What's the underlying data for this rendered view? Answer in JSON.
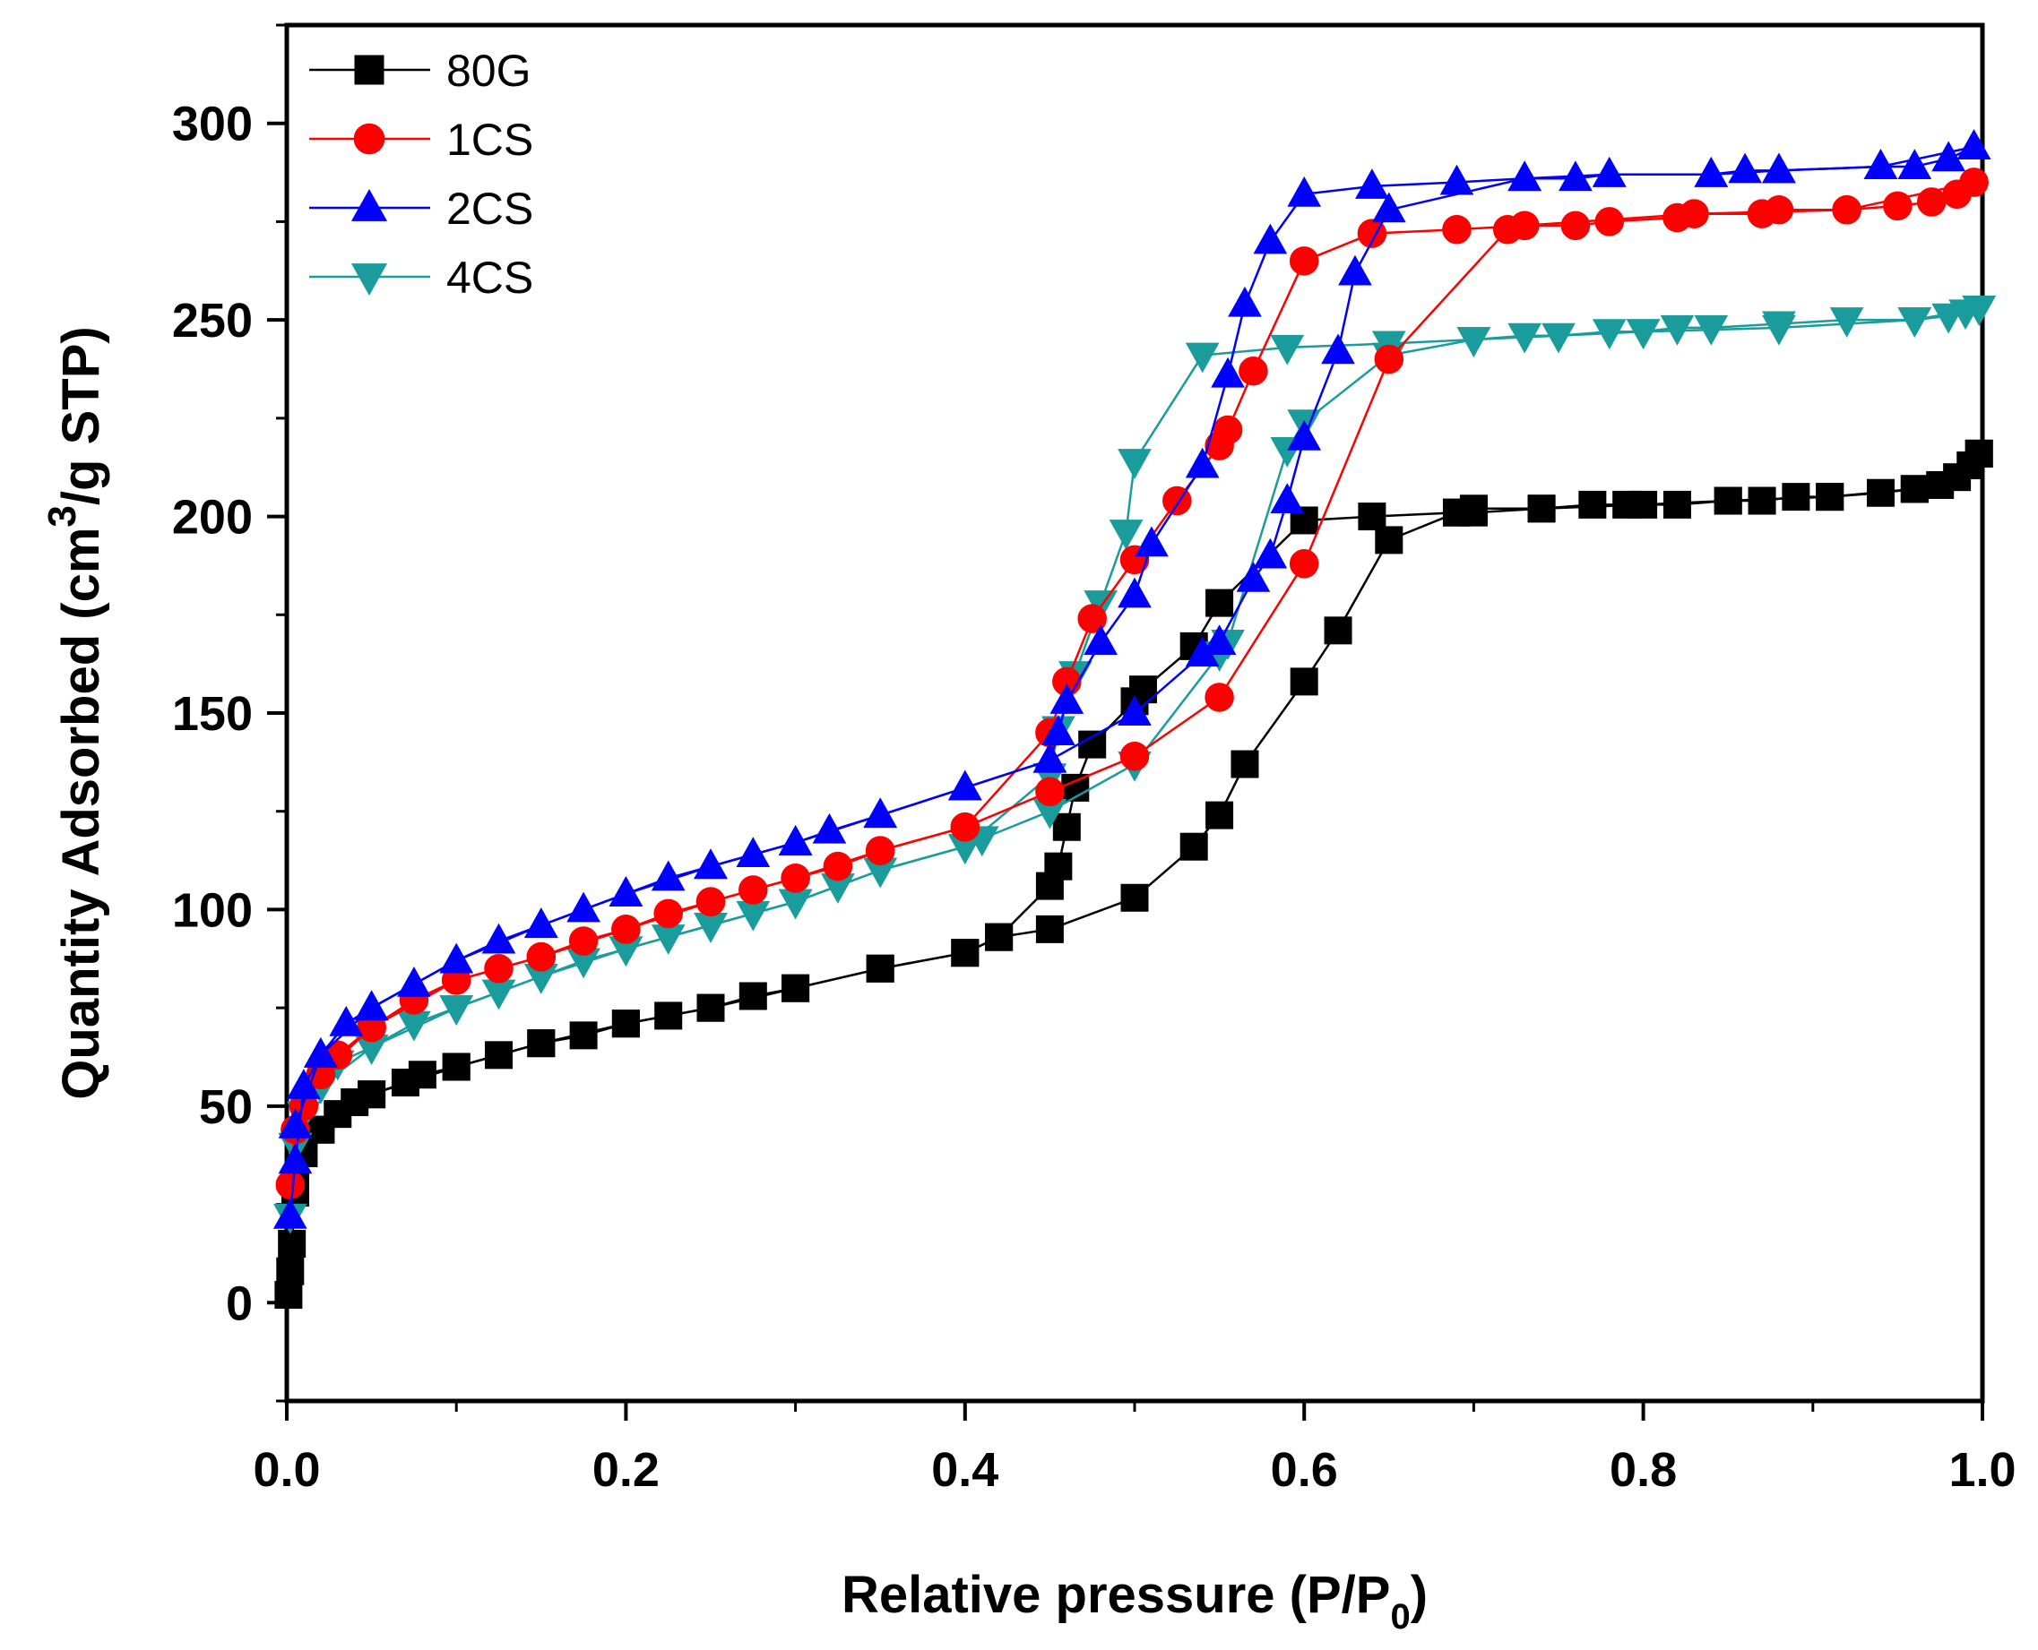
{
  "chart_data": {
    "type": "line",
    "title": "",
    "xlabel": {
      "main": "Relative pressure (P/P",
      "sub": "0",
      "tail": ")"
    },
    "ylabel": {
      "main": "Quantity Adsorbed (cm",
      "sup": "3",
      "tail": "/g STP)"
    },
    "xlim": [
      0.0,
      1.0
    ],
    "ylim": [
      -25,
      325
    ],
    "xticks": [
      "0.0",
      "0.2",
      "0.4",
      "0.6",
      "0.8",
      "1.0"
    ],
    "xtick_values": [
      0.0,
      0.2,
      0.4,
      0.6,
      0.8,
      1.0
    ],
    "yticks": [
      "0",
      "50",
      "100",
      "150",
      "200",
      "250",
      "300"
    ],
    "ytick_values": [
      0,
      50,
      100,
      150,
      200,
      250,
      300
    ],
    "legend_position": "top-left",
    "series": [
      {
        "name": "80G",
        "color": "#000000",
        "marker": "square",
        "adsorption": {
          "x": [
            0.001,
            0.002,
            0.003,
            0.005,
            0.01,
            0.02,
            0.03,
            0.04,
            0.05,
            0.07,
            0.08,
            0.1,
            0.125,
            0.15,
            0.175,
            0.2,
            0.225,
            0.25,
            0.275,
            0.3,
            0.35,
            0.4,
            0.42,
            0.45,
            0.5,
            0.535,
            0.55,
            0.565,
            0.6,
            0.62,
            0.65,
            0.69,
            0.7,
            0.74,
            0.77,
            0.79,
            0.82,
            0.85,
            0.87,
            0.89,
            0.91,
            0.94,
            0.96,
            0.975,
            0.985,
            0.993,
            0.998
          ],
          "y": [
            2,
            8,
            15,
            28,
            38,
            44,
            48,
            51,
            53,
            56,
            58,
            60,
            63,
            66,
            68,
            71,
            73,
            75,
            78,
            80,
            85,
            89,
            93,
            95,
            103,
            116,
            124,
            137,
            158,
            171,
            194,
            201,
            202,
            202,
            203,
            203,
            203,
            204,
            204,
            205,
            205,
            206,
            207,
            208,
            210,
            213,
            216
          ]
        },
        "desorption": {
          "x": [
            0.998,
            0.96,
            0.91,
            0.85,
            0.8,
            0.74,
            0.7,
            0.69,
            0.64,
            0.6,
            0.55,
            0.535,
            0.505,
            0.5,
            0.475,
            0.465,
            0.46,
            0.455,
            0.45,
            0.42,
            0.4,
            0.35,
            0.3,
            0.25,
            0.2,
            0.15,
            0.1,
            0.05,
            0.02,
            0.005
          ],
          "y": [
            216,
            207,
            205,
            204,
            203,
            202,
            201,
            201,
            200,
            199,
            178,
            167,
            156,
            153,
            142,
            131,
            121,
            111,
            106,
            93,
            89,
            85,
            80,
            75,
            71,
            66,
            60,
            53,
            44,
            30
          ]
        }
      },
      {
        "name": "1CS",
        "color": "#ff0000",
        "marker": "circle",
        "adsorption": {
          "x": [
            0.002,
            0.005,
            0.01,
            0.02,
            0.03,
            0.05,
            0.075,
            0.1,
            0.125,
            0.15,
            0.175,
            0.2,
            0.225,
            0.25,
            0.275,
            0.3,
            0.325,
            0.35,
            0.4,
            0.45,
            0.5,
            0.55,
            0.6,
            0.65,
            0.72,
            0.73,
            0.76,
            0.78,
            0.82,
            0.83,
            0.87,
            0.88,
            0.92,
            0.95,
            0.97,
            0.985,
            0.995
          ],
          "y": [
            30,
            44,
            50,
            58,
            63,
            70,
            77,
            82,
            85,
            88,
            92,
            95,
            99,
            102,
            105,
            108,
            111,
            115,
            121,
            130,
            139,
            154,
            188,
            240,
            273,
            274,
            274,
            275,
            276,
            277,
            277,
            278,
            278,
            279,
            280,
            282,
            285
          ]
        },
        "desorption": {
          "x": [
            0.995,
            0.92,
            0.83,
            0.73,
            0.69,
            0.64,
            0.6,
            0.57,
            0.555,
            0.55,
            0.525,
            0.5,
            0.475,
            0.46,
            0.45,
            0.4,
            0.35,
            0.3,
            0.25,
            0.2,
            0.15,
            0.1,
            0.05,
            0.02,
            0.005
          ],
          "y": [
            285,
            278,
            277,
            274,
            273,
            272,
            265,
            237,
            222,
            218,
            204,
            189,
            174,
            158,
            145,
            121,
            115,
            108,
            102,
            95,
            88,
            82,
            70,
            58,
            44
          ]
        }
      },
      {
        "name": "2CS",
        "color": "#0000ff",
        "marker": "triangle-up",
        "adsorption": {
          "x": [
            0.002,
            0.005,
            0.01,
            0.02,
            0.035,
            0.05,
            0.075,
            0.1,
            0.125,
            0.15,
            0.175,
            0.2,
            0.225,
            0.25,
            0.275,
            0.3,
            0.32,
            0.35,
            0.4,
            0.45,
            0.5,
            0.54,
            0.55,
            0.57,
            0.58,
            0.59,
            0.6,
            0.62,
            0.63,
            0.65,
            0.73,
            0.76,
            0.78,
            0.84,
            0.86,
            0.88,
            0.94,
            0.96,
            0.98,
            0.995
          ],
          "y": [
            22,
            36,
            55,
            63,
            71,
            75,
            81,
            87,
            92,
            96,
            100,
            104,
            108,
            111,
            114,
            117,
            120,
            124,
            131,
            138,
            150,
            165,
            168,
            184,
            190,
            204,
            220,
            242,
            262,
            278,
            286,
            286,
            287,
            287,
            288,
            288,
            289,
            289,
            291,
            294
          ]
        },
        "desorption": {
          "x": [
            0.995,
            0.94,
            0.88,
            0.84,
            0.78,
            0.73,
            0.69,
            0.64,
            0.6,
            0.58,
            0.565,
            0.555,
            0.54,
            0.51,
            0.5,
            0.48,
            0.46,
            0.455,
            0.45,
            0.4,
            0.35,
            0.3,
            0.25,
            0.2,
            0.15,
            0.1,
            0.05,
            0.02,
            0.005
          ],
          "y": [
            294,
            289,
            288,
            287,
            287,
            286,
            285,
            284,
            282,
            270,
            254,
            236,
            213,
            193,
            180,
            168,
            153,
            145,
            138,
            131,
            124,
            117,
            111,
            104,
            96,
            87,
            75,
            63,
            45
          ]
        }
      },
      {
        "name": "4CS",
        "color": "#1a9c9c",
        "marker": "triangle-down",
        "adsorption": {
          "x": [
            0.002,
            0.005,
            0.01,
            0.02,
            0.03,
            0.05,
            0.075,
            0.1,
            0.125,
            0.15,
            0.175,
            0.2,
            0.225,
            0.25,
            0.275,
            0.3,
            0.325,
            0.35,
            0.4,
            0.41,
            0.45,
            0.5,
            0.55,
            0.555,
            0.59,
            0.6,
            0.65,
            0.7,
            0.73,
            0.75,
            0.78,
            0.8,
            0.82,
            0.84,
            0.88,
            0.92,
            0.96,
            0.98,
            0.99,
            0.998
          ],
          "y": [
            22,
            40,
            48,
            55,
            61,
            65,
            71,
            75,
            79,
            83,
            87,
            90,
            93,
            96,
            99,
            102,
            106,
            110,
            116,
            118,
            125,
            137,
            165,
            168,
            217,
            224,
            241,
            245,
            246,
            246,
            247,
            247,
            248,
            248,
            249,
            250,
            250,
            251,
            252,
            253
          ]
        },
        "desorption": {
          "x": [
            0.998,
            0.96,
            0.88,
            0.8,
            0.7,
            0.65,
            0.59,
            0.54,
            0.5,
            0.495,
            0.48,
            0.465,
            0.455,
            0.45,
            0.4,
            0.35,
            0.3,
            0.25,
            0.2,
            0.15,
            0.1,
            0.05,
            0.02,
            0.005
          ],
          "y": [
            253,
            250,
            248,
            247,
            245,
            244,
            243,
            241,
            214,
            196,
            178,
            160,
            146,
            134,
            116,
            110,
            102,
            96,
            90,
            83,
            75,
            65,
            55,
            40
          ]
        }
      }
    ]
  }
}
